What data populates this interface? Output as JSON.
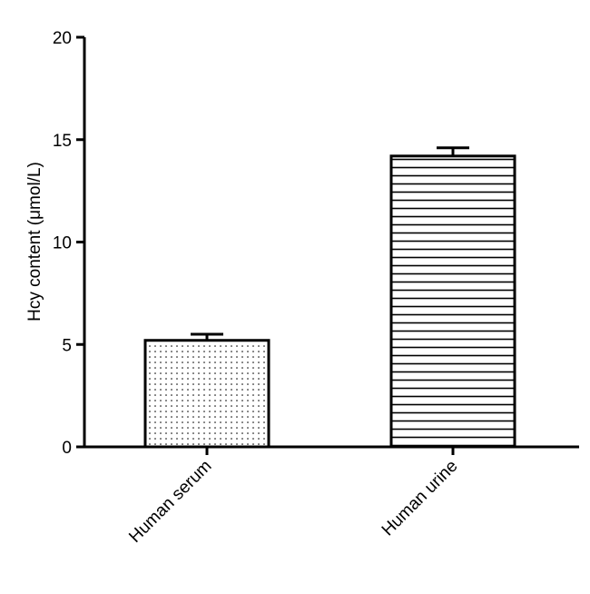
{
  "chart_data": {
    "type": "bar",
    "title": "",
    "xlabel": "",
    "ylabel": "Hcy content (μmol/L)",
    "ylim": [
      0,
      20
    ],
    "yticks": [
      "0",
      "5",
      "10",
      "15",
      "20"
    ],
    "categories": [
      "Human serum",
      "Human urine"
    ],
    "values": [
      5.2,
      14.2
    ],
    "errors": [
      0.3,
      0.4
    ],
    "fill_patterns": [
      "dots",
      "horizontal-lines"
    ],
    "grid": false,
    "legend": "none"
  }
}
